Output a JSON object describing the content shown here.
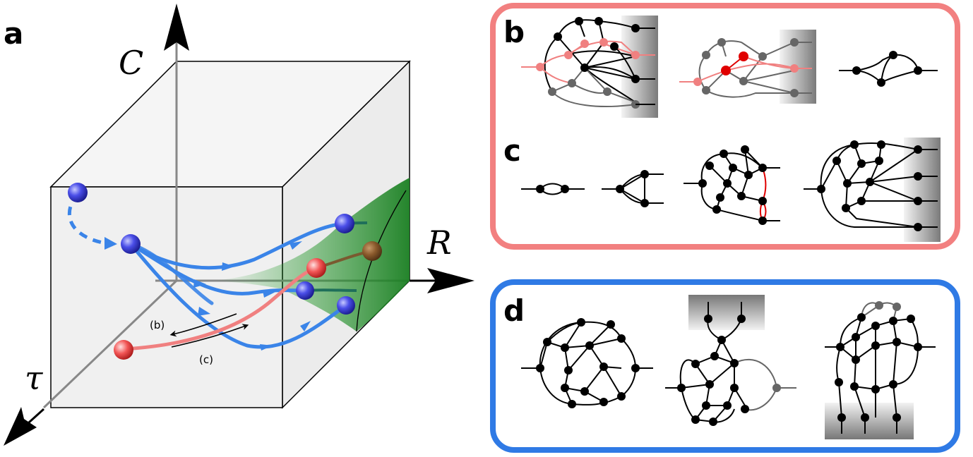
{
  "panels": {
    "a": {
      "label": "a",
      "axis_c": "C",
      "axis_r": "R",
      "axis_tau": "τ",
      "path_b": "(b)",
      "path_c": "(c)"
    },
    "b": {
      "label": "b",
      "border_color": "#f28080"
    },
    "c": {
      "label": "c",
      "border_color": "#f28080"
    },
    "d": {
      "label": "d",
      "border_color": "#2f7ae5"
    }
  },
  "colors": {
    "blue_path": "#3a84e8",
    "red_path": "#f08080",
    "green_surface": "#1e8a26"
  }
}
